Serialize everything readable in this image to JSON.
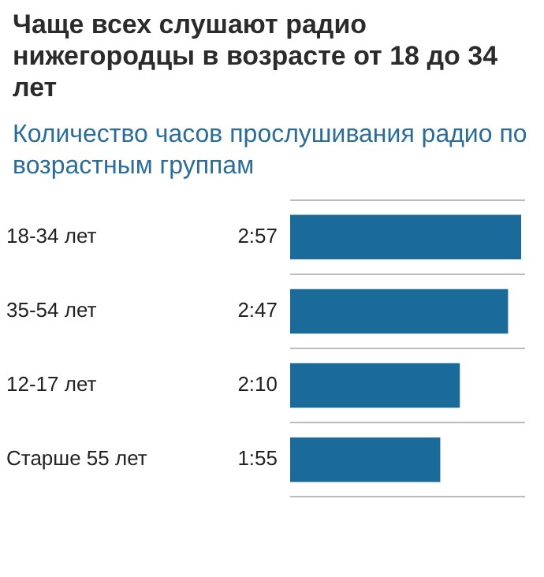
{
  "chart_data": {
    "type": "bar",
    "orientation": "horizontal",
    "title": "Чаще всех слушают радио нижегородцы в возрасте от 18 до 34 лет",
    "subtitle": "Количество часов прослушивания радио по возрастным группам",
    "categories": [
      "18-34 лет",
      "35-54 лет",
      "12-17 лет",
      "Старше 55 лет"
    ],
    "values": [
      2.95,
      2.783,
      2.167,
      1.917
    ],
    "value_labels": [
      "2:57",
      "2:47",
      "2:10",
      "1:55"
    ],
    "color": "#1a6a9a",
    "grid": "y"
  }
}
